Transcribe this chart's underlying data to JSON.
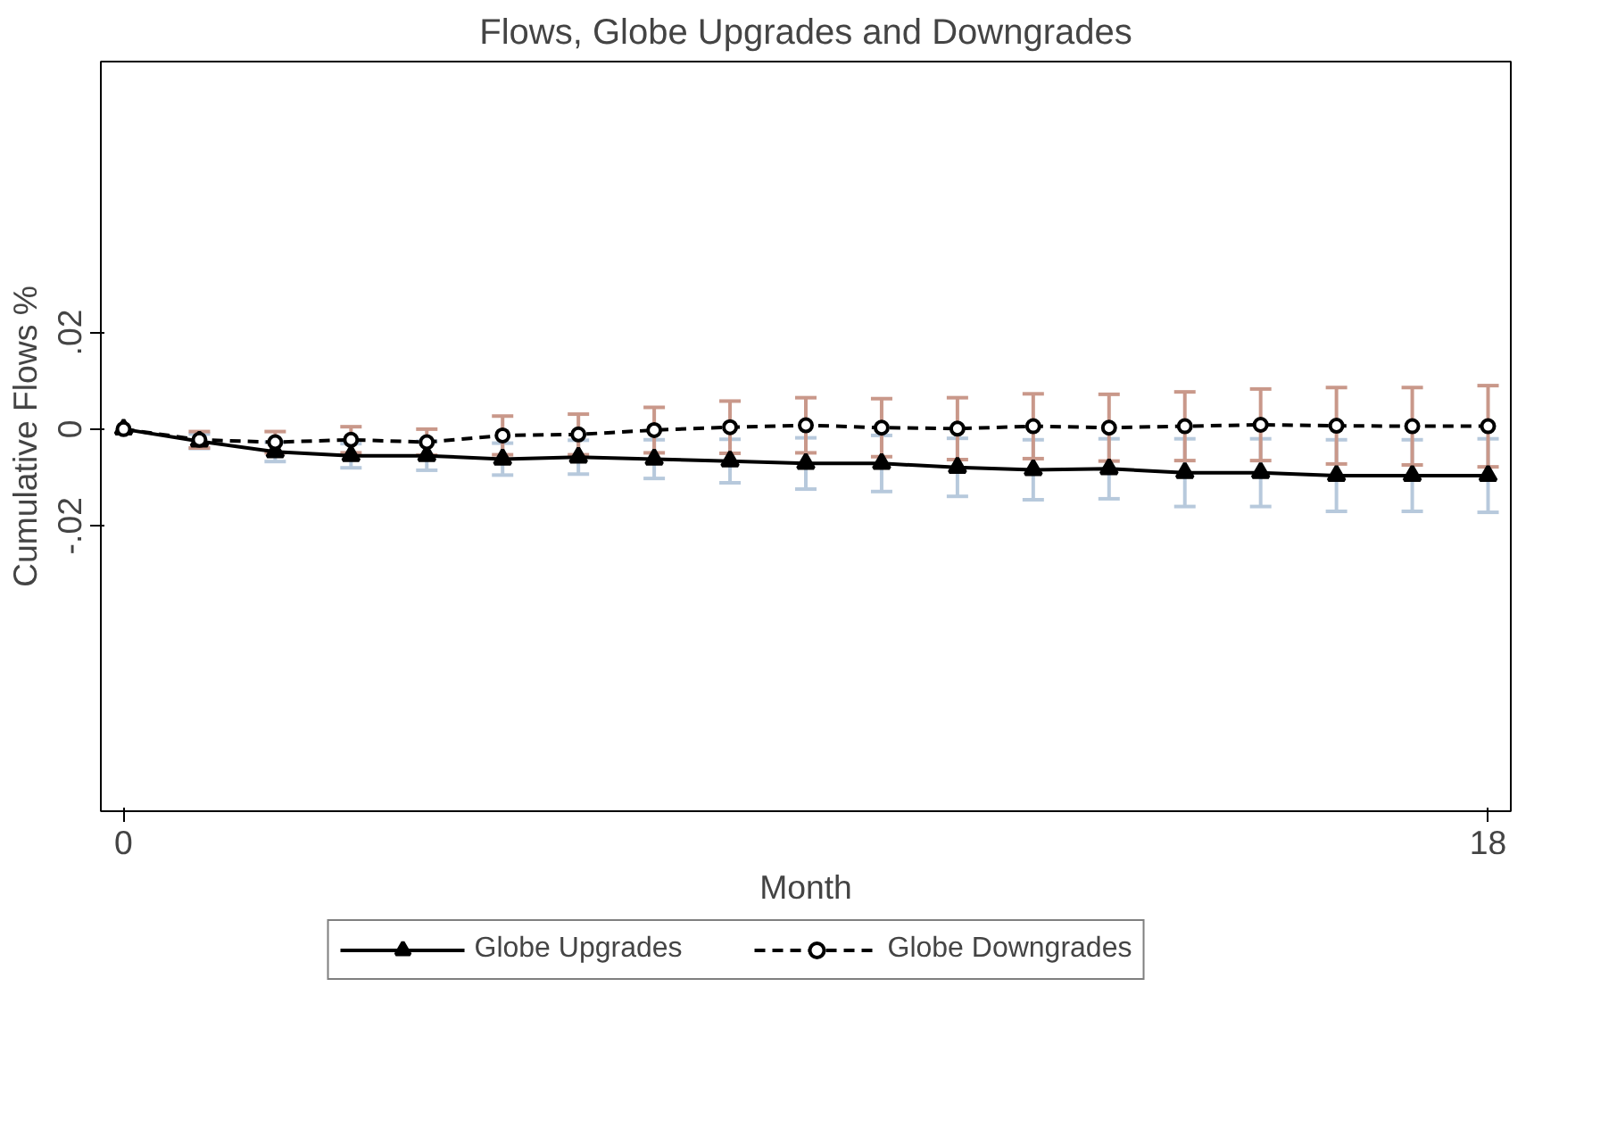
{
  "chart_data": {
    "type": "line",
    "title": "Flows, Globe Upgrades and Downgrades",
    "xlabel": "Month",
    "ylabel": "Cumulative Flows %",
    "x": [
      0,
      1,
      2,
      3,
      4,
      5,
      6,
      7,
      8,
      9,
      10,
      11,
      12,
      13,
      14,
      15,
      16,
      17,
      18
    ],
    "xlim": [
      -0.3,
      18.3
    ],
    "xticks": [
      0,
      18
    ],
    "ylim": [
      -0.079,
      0.076
    ],
    "yticks": [
      {
        "value": -0.02,
        "label": "-.02"
      },
      0,
      {
        "value": 0.02,
        "label": ".02"
      }
    ],
    "grid": false,
    "legend": "bottom",
    "series": [
      {
        "name": "Globe Upgrades",
        "color": "#000000",
        "marker": "triangle",
        "line_style": "solid",
        "values": [
          0,
          -0.0025,
          -0.0047,
          -0.0055,
          -0.0055,
          -0.0062,
          -0.0058,
          -0.0062,
          -0.0066,
          -0.0071,
          -0.0071,
          -0.0079,
          -0.0084,
          -0.0082,
          -0.009,
          -0.009,
          -0.0096,
          -0.0096,
          -0.0096
        ],
        "errors": [
          null,
          0.0015,
          0.002,
          0.0025,
          0.003,
          0.0033,
          0.0035,
          0.004,
          0.0045,
          0.0053,
          0.0058,
          0.006,
          0.0062,
          0.0062,
          0.007,
          0.007,
          0.0074,
          0.0074,
          0.0076
        ]
      },
      {
        "name": "Globe Downgrades",
        "color": "#000000",
        "marker": "circle",
        "line_style": "dashed",
        "values": [
          0,
          -0.0022,
          -0.0027,
          -0.0022,
          -0.0027,
          -0.0013,
          -0.0011,
          -0.0002,
          0.0004,
          0.0008,
          0.0003,
          0.0001,
          0.0006,
          0.0003,
          0.0006,
          0.0009,
          0.0007,
          0.0006,
          0.0006
        ],
        "errors": [
          null,
          0.0017,
          0.0022,
          0.0027,
          0.0027,
          0.004,
          0.0042,
          0.0047,
          0.0054,
          0.0057,
          0.006,
          0.0064,
          0.0067,
          0.0069,
          0.0071,
          0.0074,
          0.0079,
          0.008,
          0.0084
        ]
      }
    ]
  }
}
